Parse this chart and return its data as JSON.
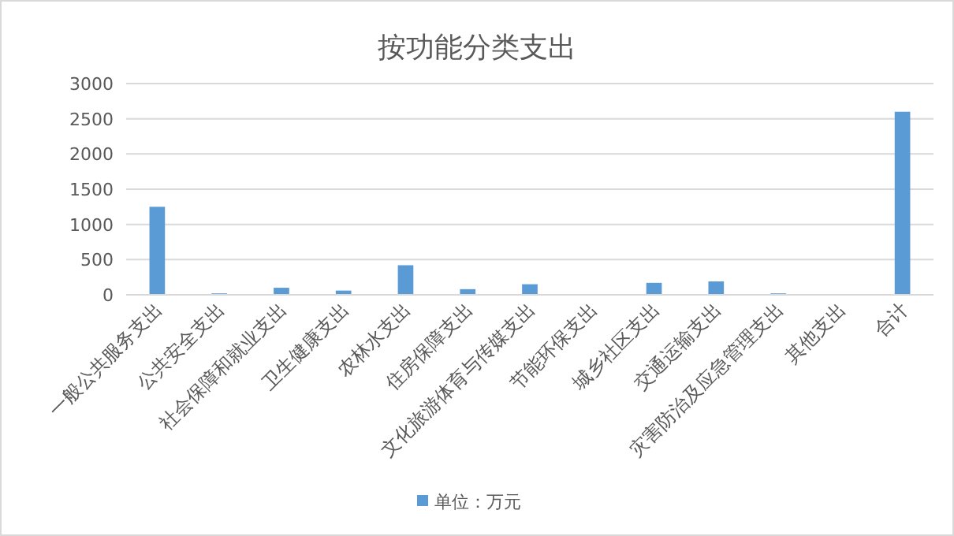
{
  "chart_data": {
    "type": "bar",
    "title": "按功能分类支出",
    "categories": [
      "一般公共服务支出",
      "公共安全支出",
      "社会保障和就业支出",
      "卫生健康支出",
      "农林水支出",
      "住房保障支出",
      "文化旅游体育与传媒支出",
      "节能环保支出",
      "城乡社区支出",
      "交通运输支出",
      "灾害防治及应急管理支出",
      "其他支出",
      "合计"
    ],
    "series": [
      {
        "name": "单位：万元",
        "color": "#5b9bd5",
        "values": [
          1250,
          20,
          100,
          60,
          420,
          80,
          150,
          0,
          170,
          190,
          20,
          0,
          2600
        ]
      }
    ],
    "ylim": [
      0,
      3000
    ],
    "yticks": [
      0,
      500,
      1000,
      1500,
      2000,
      2500,
      3000
    ],
    "grid": "y",
    "legend": "bottom"
  }
}
